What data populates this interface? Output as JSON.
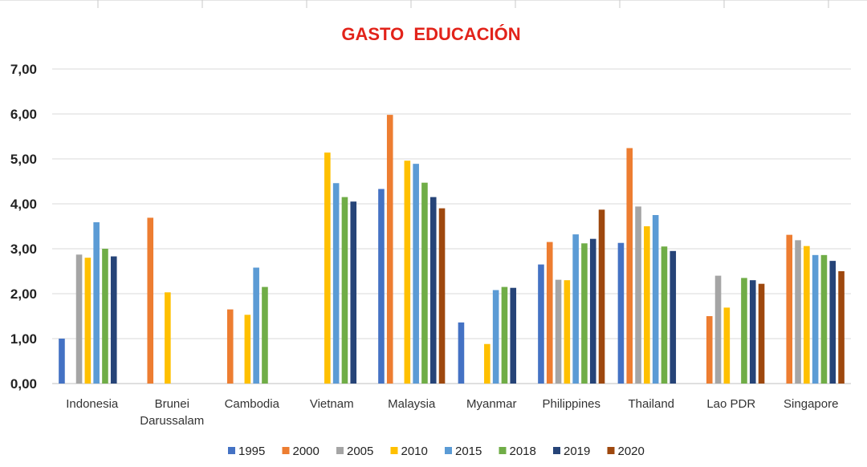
{
  "chart_data": {
    "type": "bar",
    "title": "GASTO  EDUCACIÓN",
    "xlabel": "",
    "ylabel": "",
    "ylim": [
      0,
      7
    ],
    "yticks": [
      "0,00",
      "1,00",
      "2,00",
      "3,00",
      "4,00",
      "5,00",
      "6,00",
      "7,00"
    ],
    "grid": true,
    "legend_position": "bottom",
    "categories": [
      [
        "Indonesia"
      ],
      [
        "Brunei",
        "Darussalam"
      ],
      [
        "Cambodia"
      ],
      [
        "Vietnam"
      ],
      [
        "Malaysia"
      ],
      [
        "Myanmar"
      ],
      [
        "Philippines"
      ],
      [
        "Thailand"
      ],
      [
        "Lao PDR"
      ],
      [
        "Singapore"
      ]
    ],
    "series": [
      {
        "name": "1995",
        "color": "#4472c4",
        "values": [
          1.0,
          null,
          null,
          null,
          4.33,
          1.36,
          2.65,
          3.13,
          null,
          null
        ]
      },
      {
        "name": "2000",
        "color": "#ed7d31",
        "values": [
          null,
          3.69,
          1.65,
          null,
          5.98,
          null,
          3.15,
          5.24,
          1.5,
          3.31
        ]
      },
      {
        "name": "2005",
        "color": "#a5a5a5",
        "values": [
          2.87,
          null,
          null,
          null,
          null,
          null,
          2.31,
          3.94,
          2.4,
          3.19
        ]
      },
      {
        "name": "2010",
        "color": "#ffc000",
        "values": [
          2.8,
          2.03,
          1.53,
          5.14,
          4.96,
          0.88,
          2.3,
          3.5,
          1.69,
          3.06
        ]
      },
      {
        "name": "2015",
        "color": "#5b9bd5",
        "values": [
          3.59,
          null,
          2.58,
          4.46,
          4.89,
          2.08,
          3.32,
          3.75,
          null,
          2.86
        ]
      },
      {
        "name": "2018",
        "color": "#70ad47",
        "values": [
          3.0,
          null,
          2.15,
          4.15,
          4.47,
          2.15,
          3.12,
          3.05,
          2.35,
          2.86
        ]
      },
      {
        "name": "2019",
        "color": "#264478",
        "values": [
          2.83,
          null,
          null,
          4.05,
          4.15,
          2.13,
          3.22,
          2.95,
          2.3,
          2.73
        ]
      },
      {
        "name": "2020",
        "color": "#9e480e",
        "values": [
          null,
          null,
          null,
          null,
          3.9,
          null,
          3.87,
          null,
          2.22,
          2.5
        ]
      }
    ]
  }
}
